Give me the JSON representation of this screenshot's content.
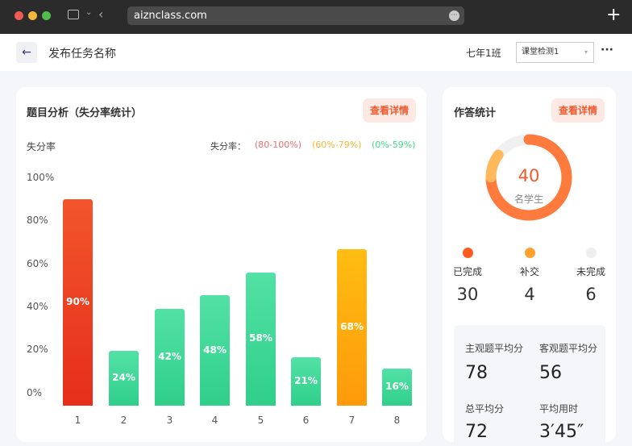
{
  "browser": {
    "url": "aiznclass.com"
  },
  "header": {
    "title": "发布任务名称",
    "class_name": "七年1班",
    "select_value": "课堂检测1",
    "more": "···"
  },
  "left_card": {
    "title": "题目分析（失分率统计）",
    "detail_button": "查看详情",
    "y_title": "失分率",
    "legend_label": "失分率：",
    "legend": [
      {
        "text": "(80-100%)",
        "color": "#f26b6b"
      },
      {
        "text": "(60%-79%)",
        "color": "#f7b733"
      },
      {
        "text": "(0%-59%)",
        "color": "#3ddc84"
      }
    ]
  },
  "chart_data": {
    "type": "bar",
    "categories": [
      "1",
      "2",
      "3",
      "4",
      "5",
      "6",
      "7",
      "8"
    ],
    "values": [
      90,
      24,
      42,
      48,
      58,
      21,
      68,
      16
    ],
    "data_labels": [
      "90%",
      "24%",
      "42%",
      "48%",
      "58%",
      "21%",
      "68%",
      "16%"
    ],
    "yticks": [
      "100%",
      "80%",
      "60%",
      "40%",
      "20%",
      "0%"
    ],
    "ylabel": "失分率",
    "ylim": [
      0,
      100
    ],
    "colors": {
      "high": "#ee3b24",
      "mid": "#ffa80d",
      "low": "#3fd896"
    }
  },
  "right_card": {
    "title": "作答统计",
    "detail_button": "查看详情",
    "total": "40",
    "total_label": "名学生",
    "stats": [
      {
        "label": "已完成",
        "value": "30",
        "color": "#ff5a1f"
      },
      {
        "label": "补交",
        "value": "4",
        "color": "#ffa12c"
      },
      {
        "label": "未完成",
        "value": "6",
        "color": "#eeeeee"
      }
    ],
    "averages": [
      {
        "label": "主观题平均分",
        "value": "78"
      },
      {
        "label": "客观题平均分",
        "value": "56"
      },
      {
        "label": "总平均分",
        "value": "72"
      },
      {
        "label": "平均用时",
        "value": "3′45″"
      }
    ]
  }
}
